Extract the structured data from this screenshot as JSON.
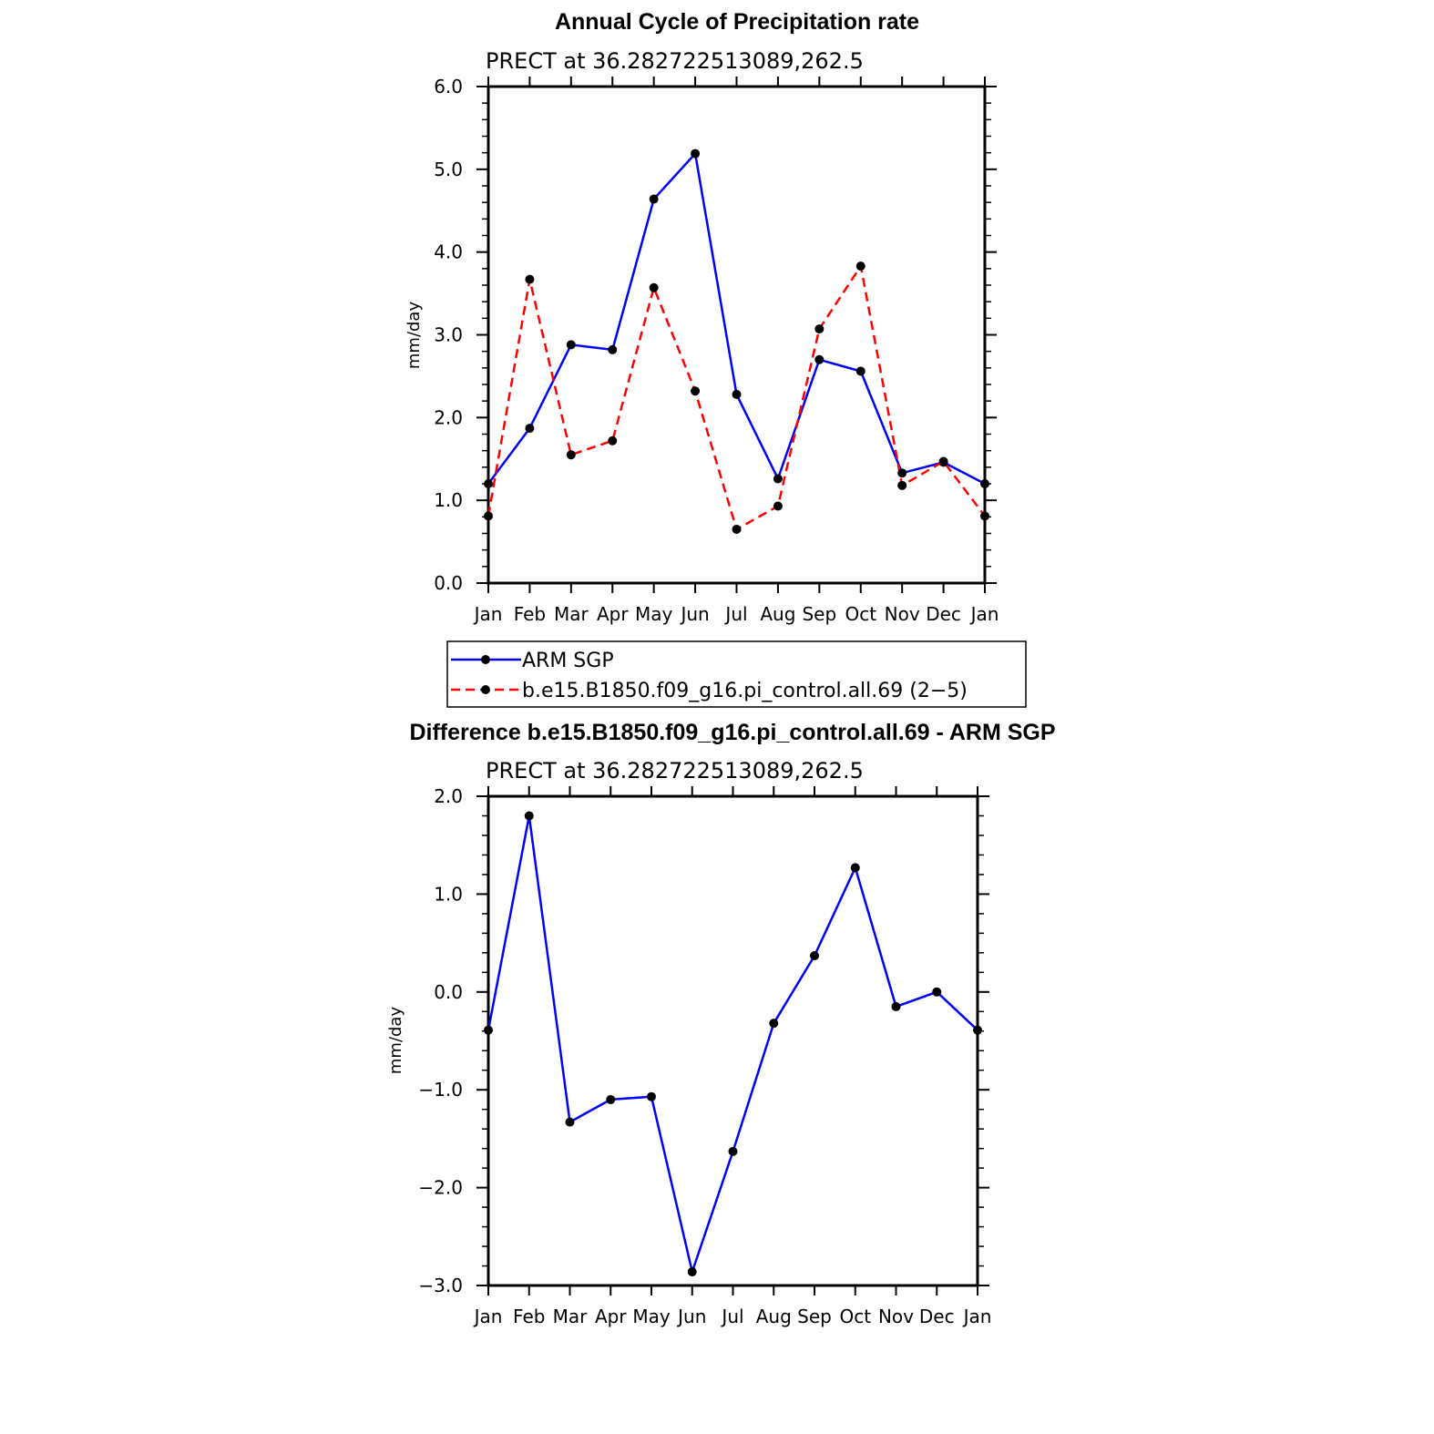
{
  "chart_data": [
    {
      "type": "line",
      "title": "Annual Cycle of Precipitation rate",
      "subtitle": "PRECT at 36.282722513089,262.5",
      "xlabel": "",
      "ylabel": "mm/day",
      "categories": [
        "Jan",
        "Feb",
        "Mar",
        "Apr",
        "May",
        "Jun",
        "Jul",
        "Aug",
        "Sep",
        "Oct",
        "Nov",
        "Dec",
        "Jan"
      ],
      "ylim": [
        0.0,
        6.0
      ],
      "yticks": [
        "0.0",
        "1.0",
        "2.0",
        "3.0",
        "4.0",
        "5.0",
        "6.0"
      ],
      "series": [
        {
          "name": "ARM SGP",
          "color": "#0000ff",
          "style": "solid",
          "values": [
            1.2,
            1.87,
            2.88,
            2.82,
            4.64,
            5.19,
            2.28,
            1.26,
            2.7,
            2.56,
            1.33,
            1.46,
            1.2
          ]
        },
        {
          "name": "b.e15.B1850.f09_g16.pi_control.all.69 (2−5)",
          "color": "#ff0000",
          "style": "dashed",
          "values": [
            0.81,
            3.67,
            1.55,
            1.72,
            3.57,
            2.32,
            0.65,
            0.93,
            3.07,
            3.83,
            1.18,
            1.47,
            0.81
          ]
        }
      ],
      "legend_position": "bottom",
      "grid": false
    },
    {
      "type": "line",
      "title": "Difference b.e15.B1850.f09_g16.pi_control.all.69 - ARM SGP",
      "subtitle": "PRECT at 36.282722513089,262.5",
      "xlabel": "",
      "ylabel": "mm/day",
      "categories": [
        "Jan",
        "Feb",
        "Mar",
        "Apr",
        "May",
        "Jun",
        "Jul",
        "Aug",
        "Sep",
        "Oct",
        "Nov",
        "Dec",
        "Jan"
      ],
      "ylim": [
        -3.0,
        2.0
      ],
      "yticks": [
        "−3.0",
        "−2.0",
        "−1.0",
        "0.0",
        "1.0",
        "2.0"
      ],
      "series": [
        {
          "color": "#0000ff",
          "style": "solid",
          "values": [
            -0.39,
            1.8,
            -1.33,
            -1.1,
            -1.07,
            -2.86,
            -1.63,
            -0.32,
            0.37,
            1.27,
            -0.15,
            0.0,
            -0.39
          ]
        }
      ],
      "grid": false
    }
  ]
}
